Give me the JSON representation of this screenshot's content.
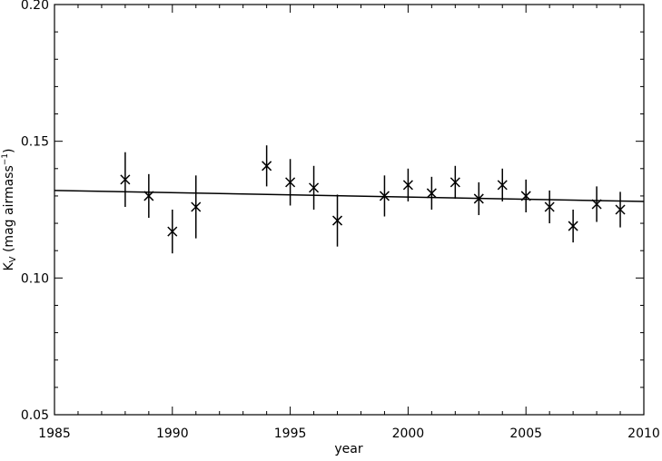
{
  "chart_data": {
    "type": "scatter",
    "xlabel": "year",
    "ylabel": [
      "K",
      "V",
      " (mag airmass",
      "−1",
      ")"
    ],
    "xlim": [
      1985,
      2010
    ],
    "xticks": [
      1985,
      1990,
      1995,
      2000,
      2005,
      2010
    ],
    "ylim": [
      0.05,
      0.2
    ],
    "yticks": [
      0.05,
      {
        "value": 0.1,
        "label": "0.10"
      },
      0.15,
      {
        "value": 0.2,
        "label": "0.20"
      }
    ],
    "color": "#000000",
    "series": [
      {
        "x": [
          1988,
          1989,
          1990,
          1991,
          1994,
          1995,
          1996,
          1997,
          1999,
          2000,
          2001,
          2002,
          2003,
          2004,
          2005,
          2006,
          2007,
          2008,
          2009
        ],
        "values": [
          0.136,
          0.13,
          0.117,
          0.126,
          0.141,
          0.135,
          0.133,
          0.121,
          0.13,
          0.134,
          0.131,
          0.135,
          0.129,
          0.134,
          0.13,
          0.126,
          0.119,
          0.127,
          0.125
        ],
        "errors": [
          0.01,
          0.008,
          0.008,
          0.0115,
          0.0075,
          0.0085,
          0.008,
          0.0095,
          0.0075,
          0.006,
          0.006,
          0.006,
          0.006,
          0.006,
          0.006,
          0.006,
          0.006,
          0.0065,
          0.0065
        ]
      },
      {
        "x": [
          1985,
          2010
        ],
        "values": [
          0.132,
          0.128
        ]
      }
    ]
  }
}
